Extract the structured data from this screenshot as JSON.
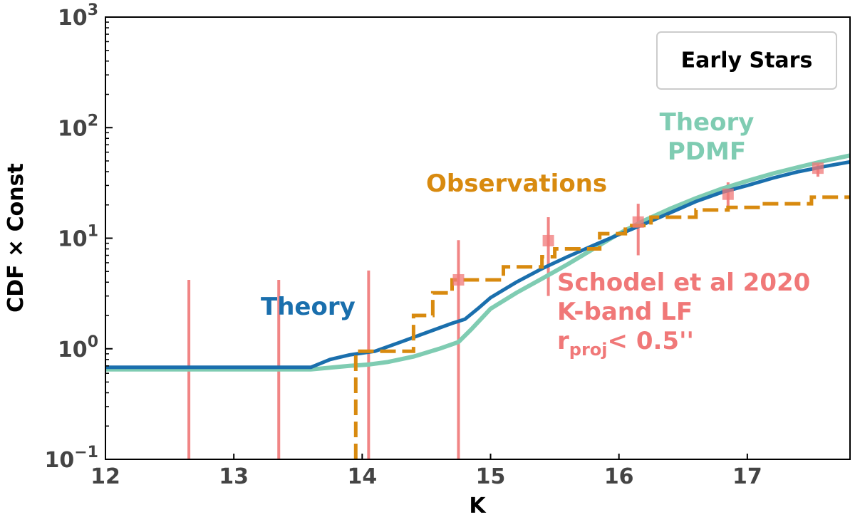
{
  "chart_data": {
    "type": "line",
    "xlabel": "K",
    "ylabel": "CDF × Const",
    "xlim": [
      12,
      17.8
    ],
    "ylim_exponents": [
      -1,
      3
    ],
    "yscale": "log",
    "x_ticks": [
      "12",
      "13",
      "14",
      "15",
      "16",
      "17"
    ],
    "x_tick_values": [
      12,
      13,
      14,
      15,
      16,
      17
    ],
    "y_tick_values": [
      0.1,
      1,
      10,
      100,
      1000
    ],
    "y_tick_base": "10",
    "y_tick_exponents": [
      "−1",
      "0",
      "1",
      "2",
      "3"
    ],
    "legend": {
      "label": "Early Stars",
      "placement": "top-right"
    },
    "annotations": {
      "theory": "Theory",
      "theory_pdmf_line1": "Theory",
      "theory_pdmf_line2": "PDMF",
      "observations": "Observations",
      "schodel_line1": "Schodel et al 2020",
      "schodel_line2": "K-band LF",
      "schodel_r": "r",
      "schodel_sub": "proj",
      "schodel_rest": "< 0.5''"
    },
    "colors": {
      "theory": "#1a6fad",
      "theory_pdmf": "#7fccb2",
      "observations": "#d88a0f",
      "schodel": "#f07878"
    },
    "series": [
      {
        "name": "Theory PDMF",
        "style": "solid",
        "x": [
          12,
          13.6,
          13.9,
          14.05,
          14.2,
          14.4,
          14.6,
          14.75,
          14.85,
          15.0,
          15.2,
          15.4,
          15.6,
          15.8,
          16.0,
          16.2,
          16.4,
          16.6,
          16.8,
          17.0,
          17.2,
          17.4,
          17.6,
          17.8
        ],
        "y": [
          0.65,
          0.65,
          0.7,
          0.72,
          0.76,
          0.85,
          1.0,
          1.15,
          1.5,
          2.3,
          3.2,
          4.3,
          5.8,
          8.0,
          11.0,
          14.5,
          18.5,
          23.0,
          28.0,
          33.0,
          38.5,
          44.0,
          50.0,
          56.0
        ]
      },
      {
        "name": "Theory",
        "style": "solid",
        "x": [
          12,
          13.6,
          13.75,
          13.9,
          14.1,
          14.3,
          14.5,
          14.7,
          14.8,
          14.9,
          15.0,
          15.2,
          15.4,
          15.6,
          15.8,
          16.0,
          16.2,
          16.4,
          16.6,
          16.8,
          17.0,
          17.2,
          17.4,
          17.6,
          17.8
        ],
        "y": [
          0.68,
          0.68,
          0.8,
          0.88,
          0.95,
          1.15,
          1.4,
          1.7,
          1.85,
          2.3,
          2.9,
          4.0,
          5.3,
          6.8,
          8.6,
          10.8,
          13.5,
          17.0,
          21.5,
          26.0,
          30.0,
          35.0,
          40.0,
          44.5,
          49.0
        ]
      },
      {
        "name": "Observations",
        "style": "dashed",
        "x": [
          13.95,
          13.95,
          14.0,
          14.4,
          14.4,
          14.55,
          14.55,
          14.7,
          14.7,
          15.1,
          15.1,
          15.4,
          15.4,
          15.5,
          15.5,
          15.85,
          15.85,
          16.05,
          16.05,
          16.25,
          16.25,
          16.6,
          16.6,
          16.85,
          16.85,
          17.1,
          17.1,
          17.5,
          17.5,
          17.8
        ],
        "y": [
          0.1,
          0.95,
          0.95,
          0.95,
          2.0,
          2.0,
          3.2,
          3.2,
          4.2,
          4.2,
          5.5,
          5.5,
          6.8,
          6.8,
          8.0,
          8.0,
          11.0,
          11.0,
          13.0,
          13.0,
          15.5,
          15.5,
          18.0,
          18.0,
          19.0,
          19.0,
          20.5,
          20.5,
          23.5,
          23.5
        ]
      }
    ],
    "error_points": {
      "name": "Schodel et al 2020",
      "x": [
        12.65,
        13.35,
        14.05,
        14.75,
        15.45,
        16.15,
        16.85,
        17.55
      ],
      "y": [
        0.1,
        0.1,
        0.1,
        4.2,
        9.5,
        14.0,
        25.0,
        43.0
      ],
      "y_low": [
        0.1,
        0.1,
        0.1,
        0.1,
        3.0,
        7.0,
        18.0,
        36.0
      ],
      "y_high": [
        4.2,
        4.2,
        5.1,
        9.6,
        15.5,
        20.5,
        32.0,
        50.0
      ],
      "marker": [
        false,
        false,
        false,
        true,
        true,
        true,
        true,
        true
      ]
    }
  }
}
